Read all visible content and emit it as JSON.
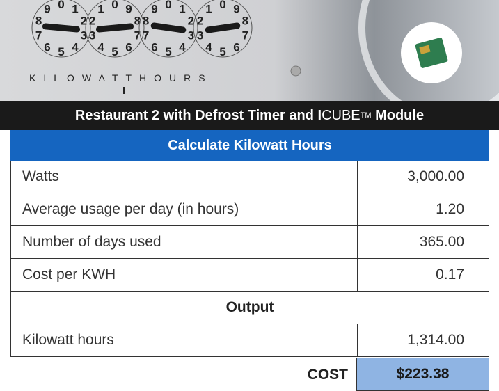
{
  "banner": {
    "label": "KILOWATTHOURS",
    "dial_digits": [
      "0",
      "1",
      "2",
      "3",
      "4",
      "5",
      "6",
      "7",
      "8",
      "9"
    ]
  },
  "header": {
    "title_parts": [
      "Restaurant 2 with Defrost Timer and ",
      "I",
      "CUBE",
      "TM",
      " Module"
    ]
  },
  "table": {
    "section_input": "Calculate Kilowatt Hours",
    "rows": [
      [
        "Watts",
        "3,000.00"
      ],
      [
        "Average usage per day (in hours)",
        "1.20"
      ],
      [
        "Number of days used",
        "365.00"
      ],
      [
        "Cost per KWH",
        "0.17"
      ]
    ],
    "section_output": "Output",
    "output_rows": [
      [
        "Kilowatt hours",
        "1,314.00"
      ]
    ],
    "total": [
      "COST",
      "$223.38"
    ]
  }
}
